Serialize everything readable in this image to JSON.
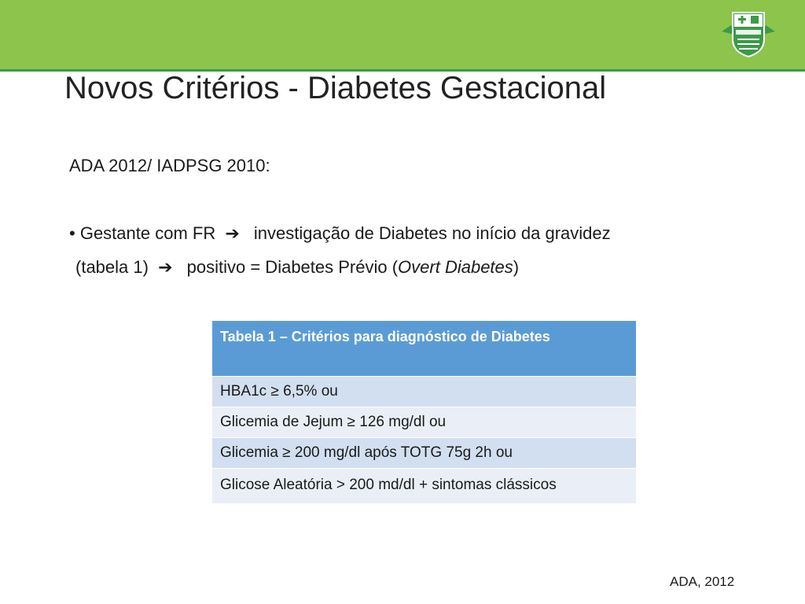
{
  "header": {
    "title": "Novos Critérios - Diabetes Gestacional",
    "logo_icon": "shield-cross-emblem-icon",
    "band_color": "#8dc44c",
    "line_color": "#3d9a48"
  },
  "body": {
    "subhead": "ADA 2012/ IADPSG 2010:",
    "bullet": {
      "marker": "•",
      "part1": "Gestante com FR",
      "arrow1": "➔",
      "part2": "investigação de Diabetes  no início da gravidez",
      "part3": "(tabela 1)",
      "arrow2": "➔",
      "part4": "positivo = Diabetes Prévio (",
      "italic": "Overt Diabetes",
      "part5": ")"
    }
  },
  "table": {
    "header": "Tabela 1 – Critérios para diagnóstico de Diabetes",
    "rows": [
      "HBA1c ≥ 6,5% ou",
      "Glicemia de Jejum ≥ 126 mg/dl ou",
      "Glicemia ≥ 200 mg/dl após TOTG 75g 2h ou",
      "Glicose Aleatória > 200 md/dl + sintomas clássicos"
    ],
    "header_color": "#5b9bd5"
  },
  "footer": {
    "source": "ADA, 2012"
  }
}
